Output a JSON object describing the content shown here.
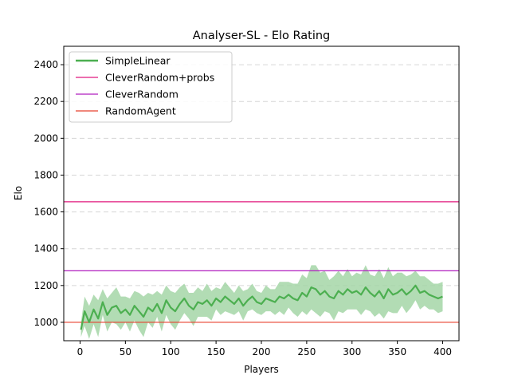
{
  "chart_data": {
    "type": "line",
    "title": "Analyser-SL - Elo Rating",
    "xlabel": "Players",
    "ylabel": "Elo",
    "xlim": [
      -18,
      418
    ],
    "ylim": [
      900,
      2500
    ],
    "xticks": [
      0,
      50,
      100,
      150,
      200,
      250,
      300,
      350,
      400
    ],
    "yticks": [
      1000,
      1200,
      1400,
      1600,
      1800,
      2000,
      2200,
      2400
    ],
    "grid": "y-dashed",
    "legend_position": "top-left",
    "series": [
      {
        "name": "SimpleLinear",
        "kind": "line-with-band",
        "color": "#4caf50",
        "band_color": "#a5d6a7",
        "x": [
          1,
          5,
          10,
          15,
          20,
          25,
          30,
          35,
          40,
          45,
          50,
          55,
          60,
          65,
          70,
          75,
          80,
          85,
          90,
          95,
          100,
          105,
          110,
          115,
          120,
          125,
          130,
          135,
          140,
          145,
          150,
          155,
          160,
          165,
          170,
          175,
          180,
          185,
          190,
          195,
          200,
          205,
          210,
          215,
          220,
          225,
          230,
          235,
          240,
          245,
          250,
          255,
          260,
          265,
          270,
          275,
          280,
          285,
          290,
          295,
          300,
          305,
          310,
          315,
          320,
          325,
          330,
          335,
          340,
          345,
          350,
          355,
          360,
          365,
          370,
          375,
          380,
          385,
          390,
          395,
          400
        ],
        "values": [
          960,
          1060,
          1000,
          1070,
          1020,
          1110,
          1040,
          1080,
          1090,
          1050,
          1070,
          1040,
          1090,
          1060,
          1030,
          1080,
          1060,
          1100,
          1050,
          1120,
          1080,
          1060,
          1100,
          1130,
          1090,
          1070,
          1110,
          1100,
          1120,
          1090,
          1130,
          1110,
          1140,
          1120,
          1100,
          1130,
          1090,
          1120,
          1140,
          1110,
          1100,
          1130,
          1120,
          1110,
          1140,
          1130,
          1150,
          1130,
          1120,
          1160,
          1140,
          1190,
          1180,
          1150,
          1170,
          1140,
          1130,
          1170,
          1150,
          1180,
          1160,
          1170,
          1150,
          1190,
          1160,
          1140,
          1170,
          1130,
          1180,
          1150,
          1160,
          1180,
          1150,
          1170,
          1200,
          1160,
          1170,
          1150,
          1140,
          1130,
          1140
        ],
        "band_half_width": [
          40,
          80,
          90,
          80,
          100,
          70,
          90,
          80,
          100,
          90,
          70,
          90,
          80,
          100,
          110,
          80,
          90,
          70,
          100,
          80,
          90,
          100,
          90,
          80,
          70,
          90,
          80,
          70,
          90,
          80,
          60,
          70,
          80,
          70,
          60,
          70,
          80,
          60,
          70,
          60,
          60,
          70,
          60,
          70,
          80,
          90,
          70,
          80,
          90,
          100,
          100,
          120,
          130,
          120,
          110,
          90,
          120,
          110,
          100,
          110,
          90,
          100,
          110,
          120,
          100,
          110,
          120,
          110,
          120,
          100,
          110,
          90,
          100,
          90,
          80,
          90,
          80,
          80,
          70,
          80,
          80
        ]
      },
      {
        "name": "CleverRandom+probs",
        "kind": "hline",
        "y": 1655,
        "color": "#e0197d"
      },
      {
        "name": "CleverRandom",
        "kind": "hline",
        "y": 1280,
        "color": "#b01fbf"
      },
      {
        "name": "RandomAgent",
        "kind": "hline",
        "y": 1000,
        "color": "#e8402f"
      }
    ]
  }
}
